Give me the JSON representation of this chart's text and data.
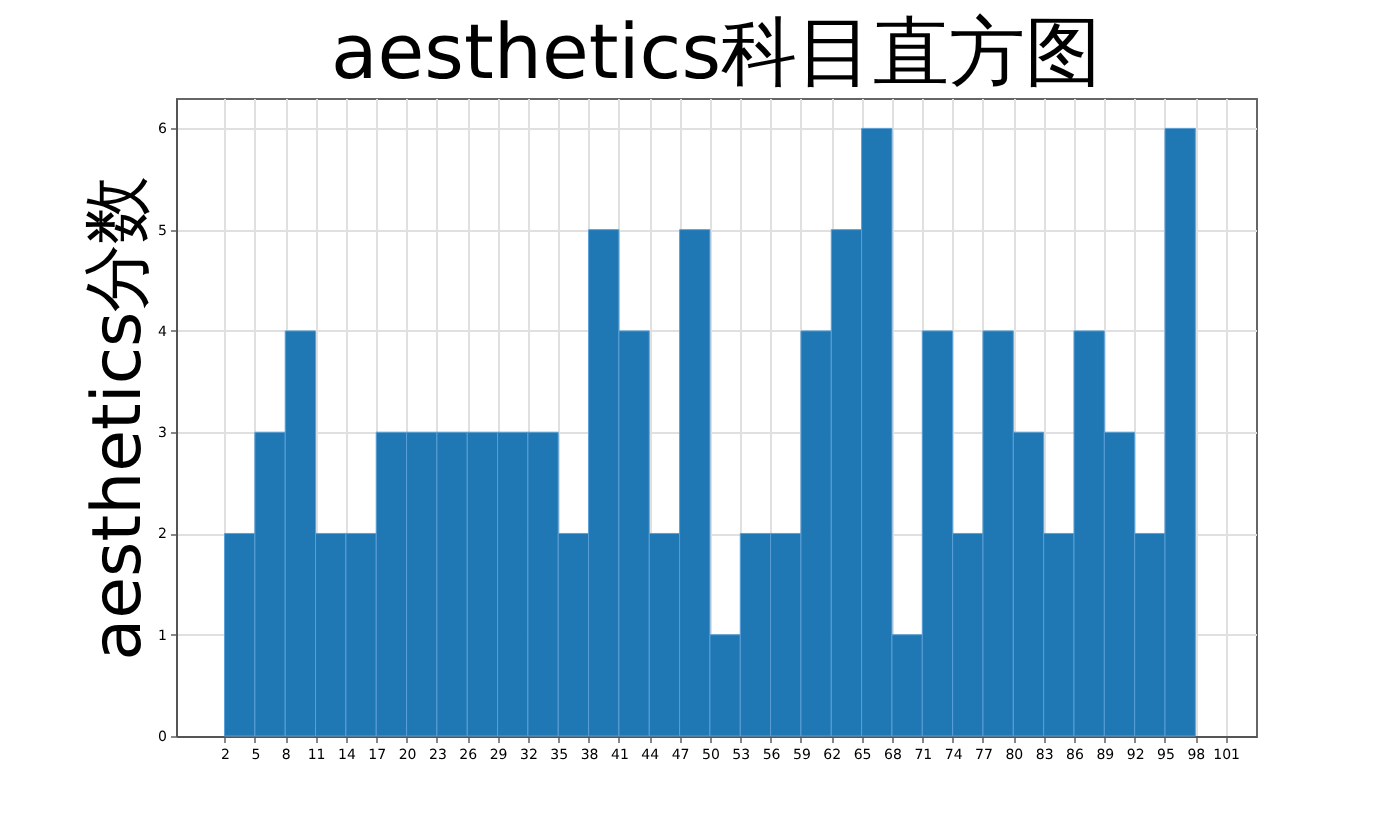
{
  "chart_data": {
    "type": "histogram",
    "title": "aesthetics科目直方图",
    "ylabel": "aesthetics分数",
    "bins": [
      2,
      5,
      8,
      11,
      14,
      17,
      20,
      23,
      26,
      29,
      32,
      35,
      38,
      41,
      44,
      47,
      50,
      53,
      56,
      59,
      62,
      65,
      68,
      71,
      74,
      77,
      80,
      83,
      86,
      89,
      92,
      95,
      98
    ],
    "values": [
      2,
      3,
      4,
      2,
      2,
      3,
      3,
      3,
      3,
      3,
      3,
      2,
      5,
      4,
      2,
      5,
      1,
      2,
      2,
      4,
      5,
      6,
      1,
      4,
      2,
      4,
      3,
      2,
      4,
      3,
      2,
      6
    ],
    "color": "#1f77b4",
    "xlim": [
      -2.8,
      104
    ],
    "xticks": [
      2,
      5,
      8,
      11,
      14,
      17,
      20,
      23,
      26,
      29,
      32,
      35,
      38,
      41,
      44,
      47,
      50,
      53,
      56,
      59,
      62,
      65,
      68,
      71,
      74,
      77,
      80,
      83,
      86,
      89,
      92,
      95,
      98,
      101
    ],
    "ylim": [
      0,
      6.3
    ],
    "yticks": [
      0,
      1,
      2,
      3,
      4,
      5,
      6
    ],
    "grid": true
  }
}
